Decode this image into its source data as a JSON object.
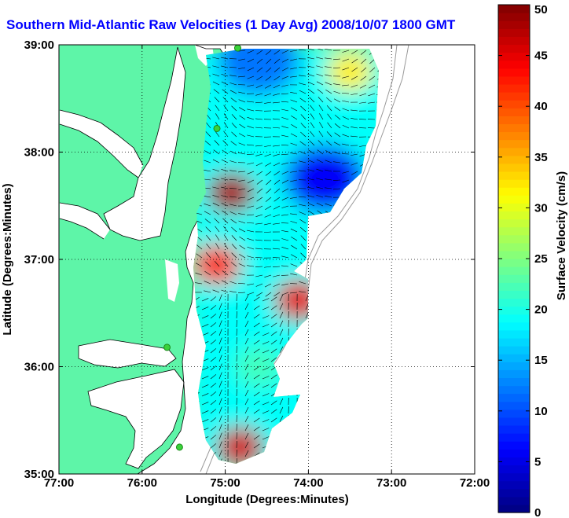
{
  "title": "Southern Mid-Atlantic Raw Velocities (1 Day Avg) 2008/10/07 1800 GMT",
  "colors": {
    "land": "#5ef5a8",
    "water": "#ffffff",
    "title": "#0000ff",
    "grid": "#000000",
    "station": "#3ad23a"
  },
  "map": {
    "xlabel": "Longitude (Degrees:Minutes)",
    "ylabel": "Latitude (Degrees:Minutes)",
    "lon_range": [
      -77,
      -72
    ],
    "lat_range": [
      35,
      39
    ],
    "x_ticks": [
      {
        "value": -77,
        "label": "77:00"
      },
      {
        "value": -76,
        "label": "76:00"
      },
      {
        "value": -75,
        "label": "75:00"
      },
      {
        "value": -74,
        "label": "74:00"
      },
      {
        "value": -73,
        "label": "73:00"
      },
      {
        "value": -72,
        "label": "72:00"
      }
    ],
    "y_ticks": [
      {
        "value": 35,
        "label": "35:00"
      },
      {
        "value": 36,
        "label": "36:00"
      },
      {
        "value": 37,
        "label": "37:00"
      },
      {
        "value": 38,
        "label": "38:00"
      },
      {
        "value": 39,
        "label": "39:00"
      }
    ],
    "grid": "dotted"
  },
  "colorbar": {
    "label": "Surface Velocity (cm/s)",
    "range": [
      0,
      50
    ],
    "ticks": [
      "0",
      "5",
      "10",
      "15",
      "20",
      "25",
      "30",
      "35",
      "40",
      "45",
      "50"
    ],
    "colormap": "jet"
  },
  "chart_data": {
    "type": "heatmap",
    "variable": "surface current speed",
    "units": "cm/s",
    "hotspots": [
      {
        "lon": -74.93,
        "lat": 37.62,
        "value": 48
      },
      {
        "lon": -75.1,
        "lat": 36.95,
        "value": 42
      },
      {
        "lon": -74.12,
        "lat": 36.62,
        "value": 45
      },
      {
        "lon": -74.82,
        "lat": 35.25,
        "value": 46
      },
      {
        "lon": -73.5,
        "lat": 38.75,
        "value": 32
      },
      {
        "lon": -74.6,
        "lat": 36.0,
        "value": 22
      }
    ],
    "low_regions": [
      {
        "lon": -73.8,
        "lat": 37.75,
        "value": 6
      },
      {
        "lon": -74.6,
        "lat": 38.85,
        "value": 12
      }
    ],
    "background_value": 19,
    "stations": [
      {
        "lon": -74.85,
        "lat": 38.97
      },
      {
        "lon": -75.1,
        "lat": 38.22
      },
      {
        "lon": -75.7,
        "lat": 36.18
      },
      {
        "lon": -75.55,
        "lat": 35.25
      }
    ]
  }
}
